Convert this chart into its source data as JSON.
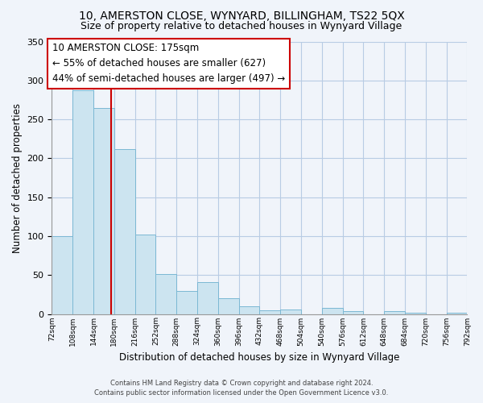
{
  "title": "10, AMERSTON CLOSE, WYNYARD, BILLINGHAM, TS22 5QX",
  "subtitle": "Size of property relative to detached houses in Wynyard Village",
  "xlabel": "Distribution of detached houses by size in Wynyard Village",
  "ylabel": "Number of detached properties",
  "bar_edges": [
    72,
    108,
    144,
    180,
    216,
    252,
    288,
    324,
    360,
    396,
    432,
    468,
    504,
    540,
    576,
    612,
    648,
    684,
    720,
    756,
    792
  ],
  "bar_heights": [
    100,
    287,
    265,
    212,
    102,
    51,
    30,
    41,
    20,
    10,
    5,
    6,
    0,
    8,
    4,
    0,
    4,
    2,
    0,
    2
  ],
  "bar_color": "#cce4f0",
  "bar_edge_color": "#7bb8d4",
  "vline_x": 175,
  "vline_color": "#cc0000",
  "annotation_title": "10 AMERSTON CLOSE: 175sqm",
  "annotation_line1": "← 55% of detached houses are smaller (627)",
  "annotation_line2": "44% of semi-detached houses are larger (497) →",
  "ylim": [
    0,
    350
  ],
  "yticks": [
    0,
    50,
    100,
    150,
    200,
    250,
    300,
    350
  ],
  "tick_labels": [
    "72sqm",
    "108sqm",
    "144sqm",
    "180sqm",
    "216sqm",
    "252sqm",
    "288sqm",
    "324sqm",
    "360sqm",
    "396sqm",
    "432sqm",
    "468sqm",
    "504sqm",
    "540sqm",
    "576sqm",
    "612sqm",
    "648sqm",
    "684sqm",
    "720sqm",
    "756sqm",
    "792sqm"
  ],
  "footer_line1": "Contains HM Land Registry data © Crown copyright and database right 2024.",
  "footer_line2": "Contains public sector information licensed under the Open Government Licence v3.0.",
  "bg_color": "#f0f4fa",
  "grid_color": "#b8cce4",
  "annotation_fontsize": 8.5,
  "title_fontsize": 10,
  "subtitle_fontsize": 9
}
